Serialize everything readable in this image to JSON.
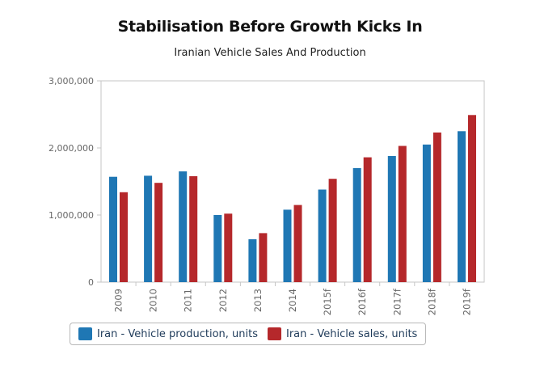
{
  "chart_data": {
    "type": "bar",
    "title": "Stabilisation Before Growth Kicks In",
    "subtitle": "Iranian Vehicle Sales And Production",
    "xlabel": "",
    "ylabel": "",
    "categories": [
      "2009",
      "2010",
      "2011",
      "2012",
      "2013",
      "2014",
      "2015f",
      "2016f",
      "2017f",
      "2018f",
      "2019f"
    ],
    "series": [
      {
        "name": "Iran - Vehicle production, units",
        "color": "#1f77b4",
        "values": [
          1570000,
          1585000,
          1650000,
          1000000,
          640000,
          1080000,
          1380000,
          1700000,
          1880000,
          2050000,
          2250000
        ]
      },
      {
        "name": "Iran - Vehicle sales, units",
        "color": "#b5282b",
        "values": [
          1340000,
          1480000,
          1580000,
          1020000,
          730000,
          1150000,
          1540000,
          1860000,
          2030000,
          2230000,
          2490000
        ]
      }
    ],
    "ylim": [
      0,
      3000000
    ],
    "yticks": [
      0,
      1000000,
      2000000,
      3000000
    ],
    "ytick_labels": [
      "0",
      "1,000,000",
      "2,000,000",
      "3,000,000"
    ],
    "grid": false,
    "legend_position": "bottom-left"
  }
}
